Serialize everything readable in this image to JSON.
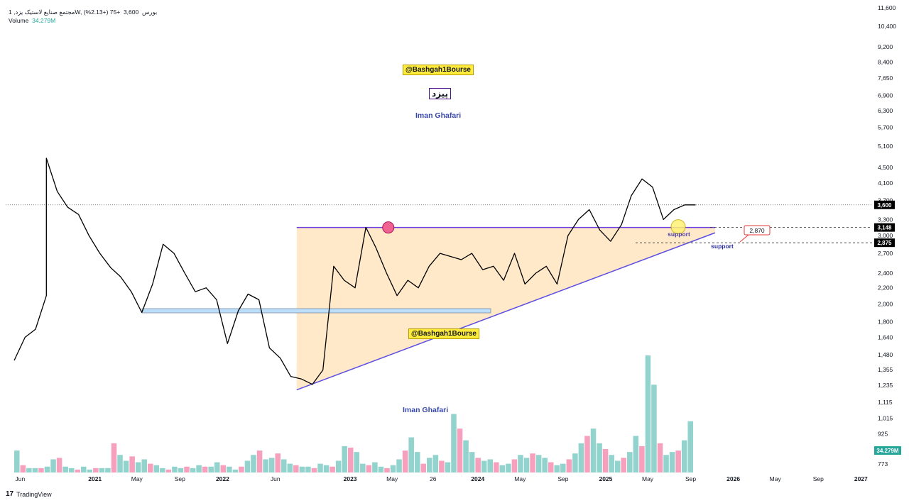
{
  "header": {
    "title": "مجتمع صنایع لاستیک یزد, 1W, بورس",
    "price": "3,600",
    "change": "+75 (+2.13%)",
    "volume_label": "Volume",
    "volume_value": "34.279M"
  },
  "brand": {
    "logo": "17",
    "name": "TradingView"
  },
  "annotations": {
    "channel_tag_top": "@Bashgah1Bourse",
    "channel_tag_mid": "@Bashgah1Bourse",
    "symbol": "پیزد",
    "author_top": "Iman Ghafari",
    "author_bottom": "Iman Ghafari",
    "support_label_1": "support",
    "support_label_2": "support",
    "target_price": "2,870"
  },
  "colors": {
    "price_line": "#000000",
    "triangle_fill": "#ffe0b2",
    "triangle_line": "#5c4ee0",
    "resistance_line": "#6a3ee0",
    "support_box": "#bbdefb",
    "vol_up": "#80cbc4",
    "vol_down": "#f48fb1",
    "marker_top": "#f06292",
    "marker_bottom": "#fff176",
    "vol_badge": "#26a69a"
  },
  "chart_data": {
    "type": "line",
    "scale": "log",
    "ylim": [
      750,
      11600
    ],
    "y_ticks": [
      "11,600",
      "10,400",
      "9,200",
      "8,400",
      "7,650",
      "6,900",
      "6,300",
      "5,700",
      "5,100",
      "4,500",
      "4,100",
      "3,700",
      "3,300",
      "3,000",
      "2,700",
      "2,400",
      "2,200",
      "2,000",
      "1,800",
      "1,640",
      "1,480",
      "1,355",
      "1,235",
      "1,115",
      "1,015",
      "925",
      "773"
    ],
    "x_ticks": [
      "Jun",
      "2021",
      "May",
      "Sep",
      "2022",
      "Jun",
      "2023",
      "May",
      "26",
      "2024",
      "May",
      "Sep",
      "2025",
      "May",
      "Sep",
      "2026",
      "May",
      "Sep",
      "2027"
    ],
    "price_labels": [
      {
        "text": "3,600",
        "value": 3600,
        "style": "black"
      },
      {
        "text": "3,148",
        "value": 3148,
        "style": "black"
      },
      {
        "text": "2,875",
        "value": 2875,
        "style": "black"
      }
    ],
    "volume_badge": "34.279M",
    "series": [
      {
        "x": [
          "2020-05",
          "2020-06",
          "2020-07",
          "2020-08",
          "2020-08-15",
          "2020-09",
          "2020-10",
          "2020-11",
          "2020-12",
          "2021-01",
          "2021-02",
          "2021-03",
          "2021-04",
          "2021-05",
          "2021-06",
          "2021-07",
          "2021-08",
          "2021-09",
          "2021-10",
          "2021-11",
          "2021-12",
          "2022-01",
          "2022-02",
          "2022-03",
          "2022-04",
          "2022-05",
          "2022-06",
          "2022-07",
          "2022-08",
          "2022-09",
          "2022-10",
          "2022-11",
          "2022-12",
          "2023-01",
          "2023-02",
          "2023-03",
          "2023-04",
          "2023-05",
          "2023-06",
          "2023-07",
          "2023-08",
          "2023-09",
          "2023-10",
          "2023-11",
          "2023-12",
          "2024-01",
          "2024-02",
          "2024-03",
          "2024-04",
          "2024-05",
          "2024-06",
          "2024-07",
          "2024-08",
          "2024-09",
          "2024-10",
          "2024-11",
          "2024-12",
          "2025-01",
          "2025-02",
          "2025-03",
          "2025-04",
          "2025-05",
          "2025-06",
          "2025-07",
          "2025-08",
          "2025-09"
        ],
        "y": [
          1430,
          1640,
          1720,
          2100,
          4750,
          3900,
          3550,
          3400,
          3000,
          2700,
          2480,
          2350,
          2150,
          1900,
          2250,
          2850,
          2700,
          2400,
          2150,
          2200,
          2050,
          1580,
          1920,
          2120,
          2050,
          1540,
          1450,
          1300,
          1280,
          1240,
          1350,
          2500,
          2300,
          2200,
          3150,
          2800,
          2400,
          2100,
          2300,
          2200,
          2500,
          2700,
          2650,
          2600,
          2700,
          2450,
          2500,
          2300,
          2700,
          2250,
          2400,
          2500,
          2250,
          3000,
          3300,
          3500,
          3100,
          2900,
          3200,
          3800,
          4200,
          4000,
          3300,
          3500,
          3600,
          3600
        ],
        "values_comment": "weekly close approximations"
      }
    ],
    "volume": {
      "unit": "M",
      "last": 34.279,
      "values": [
        15,
        5,
        3,
        3,
        3,
        4,
        9,
        10,
        4,
        3,
        2,
        4,
        2,
        3,
        3,
        3,
        20,
        12,
        8,
        11,
        7,
        9,
        6,
        5,
        3,
        2,
        4,
        3,
        4,
        3,
        5,
        4,
        4,
        7,
        5,
        4,
        2,
        4,
        8,
        12,
        15,
        9,
        10,
        13,
        9,
        6,
        5,
        4,
        4,
        3,
        6,
        5,
        4,
        8,
        18,
        17,
        14,
        6,
        5,
        7,
        4,
        3,
        5,
        9,
        15,
        24,
        14,
        6,
        10,
        12,
        8,
        7,
        40,
        30,
        22,
        14,
        10,
        8,
        9,
        7,
        5,
        6,
        9,
        12,
        10,
        13,
        12,
        10,
        7,
        5,
        6,
        9,
        13,
        20,
        25,
        30,
        20,
        16,
        12,
        8,
        10,
        14,
        25,
        18,
        80,
        60,
        20,
        12,
        14,
        15,
        22,
        35
      ]
    }
  }
}
